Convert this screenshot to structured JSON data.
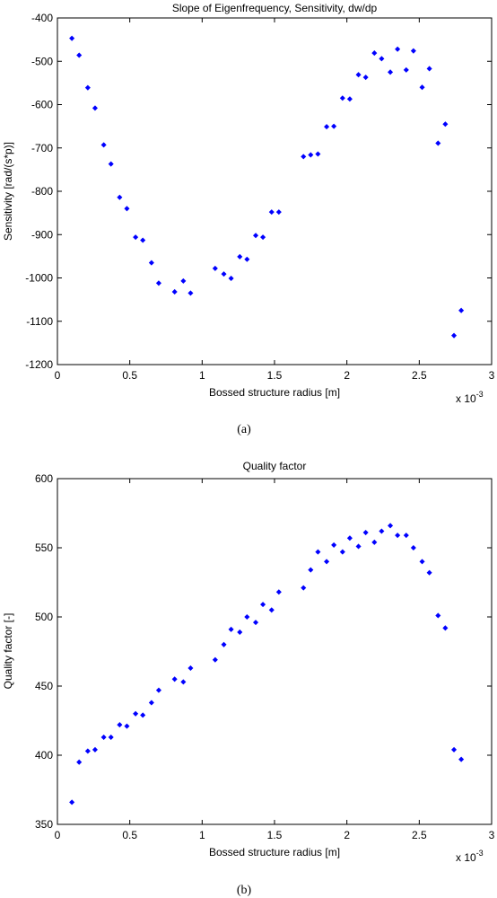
{
  "figure": {
    "caption_a": "(a)",
    "caption_b": "(b)"
  },
  "chart_data": [
    {
      "type": "scatter",
      "title": "Slope of Eigenfrequency, Sensitivity, dw/dp",
      "xlabel": "Bossed structure radius [m]",
      "ylabel": "Sensitivity [rad/(s*p)]",
      "x_exponent_label": "x 10",
      "x_exponent_power": "-3",
      "xlim": [
        0,
        3
      ],
      "ylim": [
        -1200,
        -400
      ],
      "xticks": [
        "0",
        "0.5",
        "1",
        "1.5",
        "2",
        "2.5",
        "3"
      ],
      "yticks": [
        "-400",
        "-500",
        "-600",
        "-700",
        "-800",
        "-900",
        "-1000",
        "-1100",
        "-1200"
      ],
      "grid": false,
      "marker_color": "#0000ff",
      "x": [
        0.1,
        0.15,
        0.21,
        0.26,
        0.32,
        0.37,
        0.43,
        0.48,
        0.54,
        0.59,
        0.65,
        0.7,
        0.81,
        0.87,
        0.92,
        1.09,
        1.15,
        1.2,
        1.26,
        1.31,
        1.37,
        1.42,
        1.48,
        1.53,
        1.7,
        1.75,
        1.8,
        1.86,
        1.91,
        1.97,
        2.02,
        2.08,
        2.13,
        2.19,
        2.24,
        2.3,
        2.35,
        2.41,
        2.46,
        2.52,
        2.57,
        2.63,
        2.68,
        2.74,
        2.79
      ],
      "y": [
        -447,
        -486,
        -561,
        -608,
        -693,
        -737,
        -814,
        -840,
        -906,
        -913,
        -965,
        -1012,
        -1032,
        -1007,
        -1035,
        -978,
        -991,
        -1001,
        -951,
        -957,
        -902,
        -906,
        -848,
        -848,
        -720,
        -716,
        -714,
        -651,
        -650,
        -585,
        -587,
        -531,
        -537,
        -481,
        -494,
        -525,
        -472,
        -520,
        -476,
        -560,
        -517,
        -689,
        -645,
        -1133,
        -1075
      ]
    },
    {
      "type": "scatter",
      "title": "Quality factor",
      "xlabel": "Bossed structure radius [m]",
      "ylabel": "Quality factor [-]",
      "x_exponent_label": "x 10",
      "x_exponent_power": "-3",
      "xlim": [
        0,
        3
      ],
      "ylim": [
        350,
        600
      ],
      "xticks": [
        "0",
        "0.5",
        "1",
        "1.5",
        "2",
        "2.5",
        "3"
      ],
      "yticks": [
        "600",
        "550",
        "500",
        "450",
        "400",
        "350"
      ],
      "grid": false,
      "marker_color": "#0000ff",
      "x": [
        0.1,
        0.15,
        0.21,
        0.26,
        0.32,
        0.37,
        0.43,
        0.48,
        0.54,
        0.59,
        0.65,
        0.7,
        0.81,
        0.87,
        0.92,
        1.09,
        1.15,
        1.2,
        1.26,
        1.31,
        1.37,
        1.42,
        1.48,
        1.53,
        1.7,
        1.75,
        1.8,
        1.86,
        1.91,
        1.97,
        2.02,
        2.08,
        2.13,
        2.19,
        2.24,
        2.3,
        2.35,
        2.41,
        2.46,
        2.52,
        2.57,
        2.63,
        2.68,
        2.74,
        2.79
      ],
      "y": [
        366,
        395,
        403,
        404,
        413,
        413,
        422,
        421,
        430,
        429,
        438,
        447,
        455,
        453,
        463,
        469,
        480,
        491,
        489,
        500,
        496,
        509,
        505,
        518,
        521,
        534,
        547,
        540,
        552,
        547,
        557,
        551,
        561,
        554,
        562,
        566,
        559,
        559,
        550,
        540,
        532,
        501,
        492,
        404,
        397
      ]
    }
  ]
}
